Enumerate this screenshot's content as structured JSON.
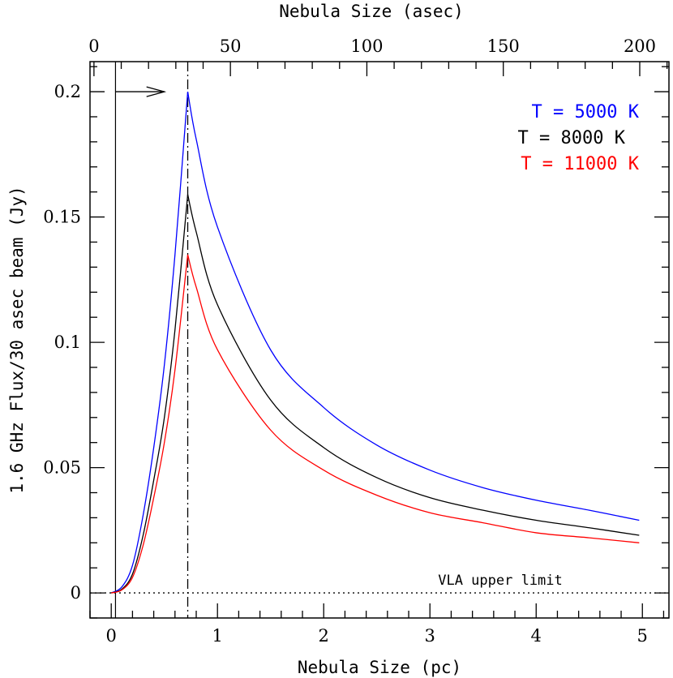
{
  "chart_data": {
    "type": "line",
    "xlabel": "Nebula Size (pc)",
    "x2label": "Nebula Size (asec)",
    "ylabel": "1.6 GHz Flux/30 asec beam (Jy)",
    "xlim": [
      -0.2,
      5.25
    ],
    "ylim": [
      -0.01,
      0.212
    ],
    "x2lim": [
      -1.45,
      210.7
    ],
    "x_ticks": [
      0,
      1,
      2,
      3,
      4,
      5
    ],
    "x_tick_labels": [
      "0",
      "1",
      "2",
      "3",
      "4",
      "5"
    ],
    "y_ticks": [
      0,
      0.05,
      0.1,
      0.15,
      0.2
    ],
    "y_tick_labels": [
      "0",
      "0.05",
      "0.1",
      "0.15",
      "0.2"
    ],
    "x2_ticks": [
      0,
      50,
      100,
      150,
      200
    ],
    "x2_tick_labels": [
      "0",
      "50",
      "100",
      "150",
      "200"
    ],
    "grid": false,
    "legend_position": "top-right",
    "beam_size_pc": 0.72,
    "upper_limit_y": 0,
    "upper_limit_label": "VLA upper limit",
    "arrow": {
      "x_start": 0.04,
      "x_end": 0.5,
      "y": 0.2
    },
    "series": [
      {
        "name": "T = 5000 K",
        "color": "#0000ff",
        "x": [
          0,
          0.1,
          0.2,
          0.3,
          0.4,
          0.5,
          0.6,
          0.72,
          0.8,
          1.0,
          1.5,
          2.0,
          2.5,
          3.0,
          3.5,
          4.0,
          4.5,
          4.97
        ],
        "y": [
          0,
          0.0024,
          0.011,
          0.031,
          0.058,
          0.091,
          0.135,
          0.2,
          0.181,
          0.146,
          0.097,
          0.074,
          0.059,
          0.049,
          0.042,
          0.037,
          0.033,
          0.029
        ]
      },
      {
        "name": "T = 8000 K",
        "color": "#000000",
        "x": [
          0,
          0.1,
          0.2,
          0.3,
          0.4,
          0.5,
          0.6,
          0.72,
          0.8,
          1.0,
          1.5,
          2.0,
          2.5,
          3.0,
          3.5,
          4.0,
          4.5,
          4.97
        ],
        "y": [
          0,
          0.0015,
          0.0075,
          0.023,
          0.045,
          0.07,
          0.105,
          0.159,
          0.144,
          0.115,
          0.077,
          0.058,
          0.046,
          0.038,
          0.033,
          0.029,
          0.026,
          0.023
        ]
      },
      {
        "name": "T = 11000 K",
        "color": "#ff0000",
        "x": [
          0,
          0.1,
          0.2,
          0.3,
          0.4,
          0.5,
          0.6,
          0.72,
          0.8,
          1.0,
          1.5,
          2.0,
          2.5,
          3.0,
          3.5,
          4.0,
          4.5,
          4.97
        ],
        "y": [
          0,
          0.0012,
          0.0062,
          0.019,
          0.038,
          0.06,
          0.089,
          0.135,
          0.122,
          0.097,
          0.065,
          0.049,
          0.039,
          0.032,
          0.028,
          0.024,
          0.022,
          0.02
        ]
      }
    ]
  }
}
